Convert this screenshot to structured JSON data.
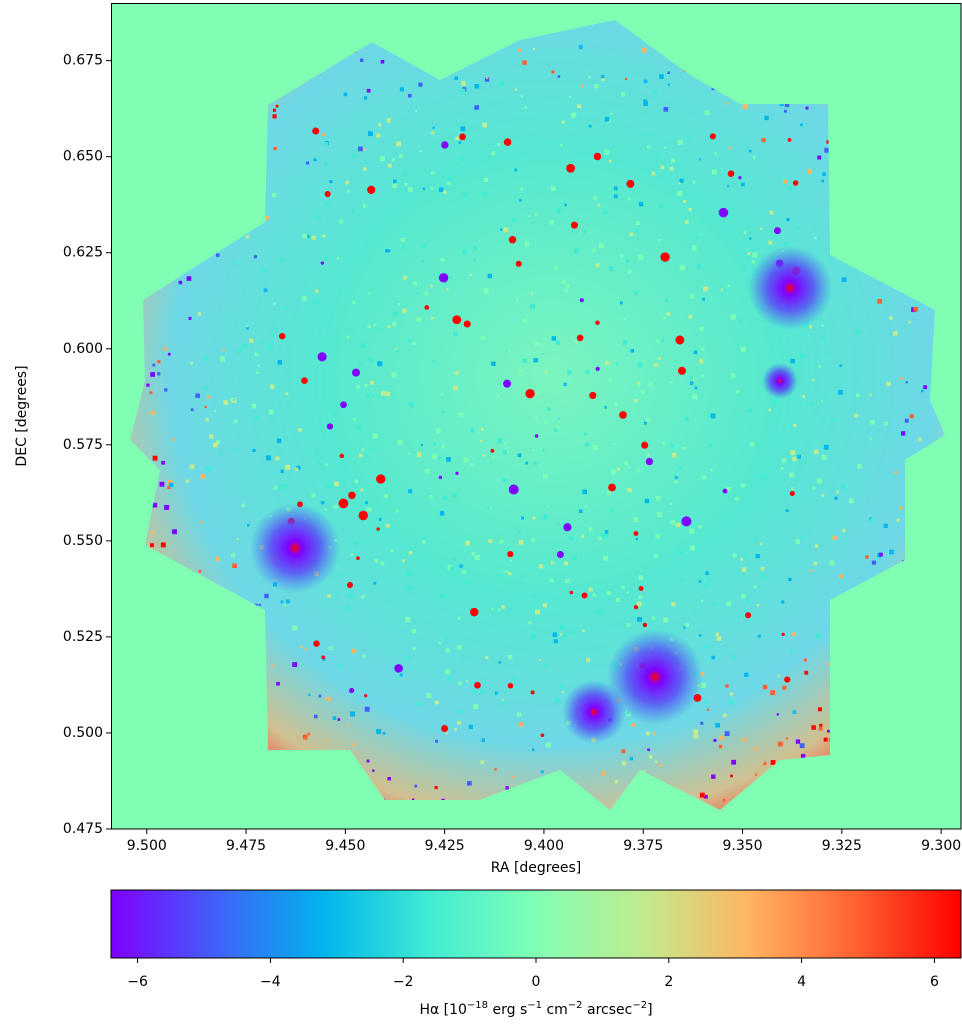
{
  "chart_data": {
    "type": "image",
    "xlabel": "RA [degrees]",
    "ylabel": "DEC [degrees]",
    "xlim": [
      9.509,
      9.295
    ],
    "ylim": [
      0.475,
      0.69
    ],
    "xticks": [
      {
        "value": 9.5,
        "label": "9.500"
      },
      {
        "value": 9.475,
        "label": "9.475"
      },
      {
        "value": 9.45,
        "label": "9.450"
      },
      {
        "value": 9.425,
        "label": "9.425"
      },
      {
        "value": 9.4,
        "label": "9.400"
      },
      {
        "value": 9.375,
        "label": "9.375"
      },
      {
        "value": 9.35,
        "label": "9.350"
      },
      {
        "value": 9.325,
        "label": "9.325"
      },
      {
        "value": 9.3,
        "label": "9.300"
      }
    ],
    "yticks": [
      {
        "value": 0.475,
        "label": "0.475"
      },
      {
        "value": 0.5,
        "label": "0.500"
      },
      {
        "value": 0.525,
        "label": "0.525"
      },
      {
        "value": 0.55,
        "label": "0.550"
      },
      {
        "value": 0.575,
        "label": "0.575"
      },
      {
        "value": 0.6,
        "label": "0.600"
      },
      {
        "value": 0.625,
        "label": "0.625"
      },
      {
        "value": 0.65,
        "label": "0.650"
      },
      {
        "value": 0.675,
        "label": "0.675"
      }
    ],
    "colorbar": {
      "clim": [
        -6.4,
        6.4
      ],
      "ticks": [
        {
          "value": -6,
          "label": "−6"
        },
        {
          "value": -4,
          "label": "−4"
        },
        {
          "value": -2,
          "label": "−2"
        },
        0,
        2,
        4,
        6
      ],
      "colormap": [
        "#8000ff",
        "#4062fa",
        "#00b4ec",
        "#40ecd4",
        "#80ffb4",
        "#c0ec8e",
        "#ffb462",
        "#ff6232",
        "#ff0000"
      ],
      "label": [
        {
          "text": "Hα [10"
        },
        {
          "text": "−18",
          "sup": true
        },
        {
          "text": " erg s"
        },
        {
          "text": "−1",
          "sup": true
        },
        {
          "text": " cm"
        },
        {
          "text": "−2",
          "sup": true
        },
        {
          "text": " arcsec"
        },
        {
          "text": "−2",
          "sup": true
        },
        {
          "text": "]"
        }
      ]
    }
  }
}
